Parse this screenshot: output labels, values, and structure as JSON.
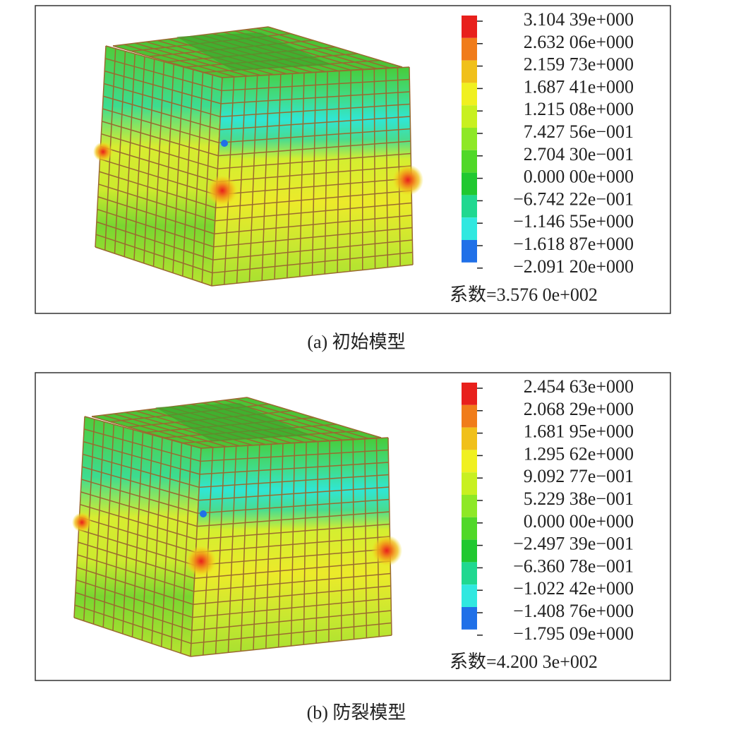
{
  "panels": [
    {
      "legend_labels": [
        "3.104 39e+000",
        "2.632 06e+000",
        "2.159 73e+000",
        "1.687 41e+000",
        "1.215 08e+000",
        "7.427 56e−001",
        "2.704 30e−001",
        "0.000 00e+000",
        "−6.742 22e−001",
        "−1.146 55e+000",
        "−1.618 87e+000",
        "−2.091 20e+000"
      ],
      "factor": "系数=3.576 0e+002",
      "caption": "(a) 初始模型"
    },
    {
      "legend_labels": [
        "2.454 63e+000",
        "2.068 29e+000",
        "1.681 95e+000",
        "1.295 62e+000",
        "9.092 77e−001",
        "5.229 38e−001",
        "0.000 00e+000",
        "−2.497 39e−001",
        "−6.360 78e−001",
        "−1.022 42e+000",
        "−1.408 76e+000",
        "−1.795 09e+000"
      ],
      "factor": "系数=4.200 3e+002",
      "caption": "(b) 防裂模型"
    }
  ]
}
